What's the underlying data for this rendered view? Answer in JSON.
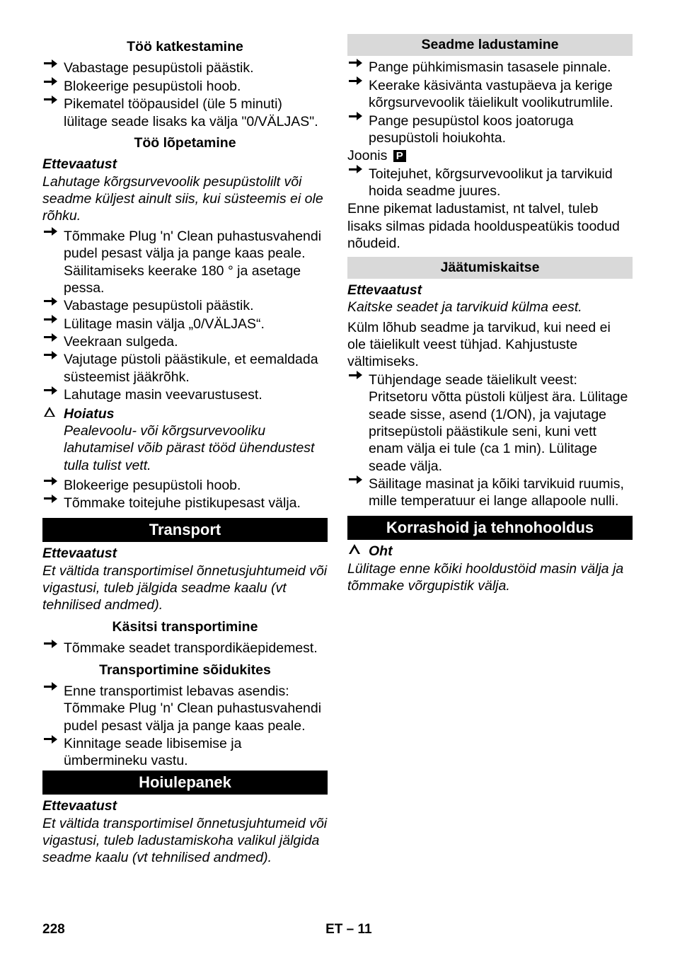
{
  "left": {
    "h1": "Töö katkestamine",
    "h1_items": [
      "Vabastage pesupüstoli päästik.",
      "Blokeerige pesupüstoli hoob.",
      "Pikematel tööpausidel (üle 5 minuti) lülitage seade lisaks ka välja \"0/VÄLJAS\"."
    ],
    "h2": "Töö lõpetamine",
    "h2_warn_label": "Ettevaatust",
    "h2_warn_body": "Lahutage kõrgsurvevoolik pesupüstolilt või seadme küljest ainult siis, kui süsteemis ei ole rõhku.",
    "h2_items1": [
      "Tõmmake Plug 'n' Clean puhastusvahendi pudel pesast välja ja pange kaas peale. Säilitamiseks keerake 180 ° ja asetage pessa.",
      "Vabastage pesupüstoli päästik.",
      "Lülitage masin välja „0/VÄLJAS“.",
      "Veekraan sulgeda.",
      "Vajutage püstoli päästikule, et eemaldada süsteemist jääkrõhk.",
      "Lahutage masin veevarustusest."
    ],
    "h2_tri_label": "Hoiatus",
    "h2_tri_body": "Pealevoolu- või kõrgsurvevooliku lahutamisel võib pärast tööd ühendustest tulla tulist vett.",
    "h2_items2": [
      "Blokeerige pesupüstoli hoob.",
      "Tõmmake toitejuhe pistikupesast välja."
    ],
    "h3": "Transport",
    "h3_warn_label": "Ettevaatust",
    "h3_warn_body": "Et vältida transportimisel õnnetusjuhtumeid või vigastusi, tuleb jälgida seadme kaalu (vt tehnilised andmed).",
    "h3a": "Käsitsi transportimine",
    "h3a_items": [
      "Tõmmake seadet transpordikäepidemest."
    ],
    "h3b": "Transportimine sõidukites",
    "h3b_items": [
      "Enne transportimist lebavas asendis: Tõmmake Plug 'n' Clean puhastusvahendi pudel pesast välja ja pange kaas peale.",
      "Kinnitage seade libisemise ja ümbermineku vastu."
    ]
  },
  "right": {
    "h1": "Hoiulepanek",
    "h1_warn_label": "Ettevaatust",
    "h1_warn_body": "Et vältida transportimisel õnnetusjuhtumeid või vigastusi, tuleb ladustamiskoha valikul jälgida seadme kaalu (vt tehnilised andmed).",
    "h1a": "Seadme ladustamine",
    "h1a_items1": [
      "Pange pühkimismasin tasasele pinnale.",
      "Keerake käsivänta vastupäeva ja kerige kõrgsurvevoolik täielikult voolikutrumlile.",
      "Pange pesupüstol koos joatoruga pesupüstoli hoiukohta."
    ],
    "joonis_label": "Joonis",
    "p_icon": "P",
    "h1a_items2": [
      "Toitejuhet, kõrgsurvevoolikut ja tarvikuid hoida seadme juures."
    ],
    "h1a_tail": "Enne pikemat ladustamist, nt talvel, tuleb lisaks silmas pidada hoolduspeatükis toodud nõudeid.",
    "h1b": "Jäätumiskaitse",
    "h1b_warn_label": "Ettevaatust",
    "h1b_warn_body": "Kaitske seadet ja tarvikuid külma eest.",
    "h1b_para": "Külm lõhub seadme ja tarvikud, kui need ei ole täielikult veest tühjad. Kahjustuste vältimiseks.",
    "h1b_items": [
      "Tühjendage seade täielikult veest: Pritsetoru võtta püstoli küljest ära. Lülitage seade sisse, asend (1/ON), ja vajutage pritsepüstoli päästikule seni, kuni vett enam välja ei tule (ca 1 min). Lülitage seade välja.",
      "Säilitage masinat ja kõiki tarvikuid ruumis, mille temperatuur ei lange allapoole nulli."
    ],
    "h2": "Korrashoid ja tehnohooldus",
    "h2_tri_label": "Oht",
    "h2_tri_body": "Lülitage enne kõiki hooldustöid masin välja ja tõmmake võrgupistik välja."
  },
  "footer": {
    "page": "228",
    "lang": "ET",
    "num": "– 11"
  }
}
